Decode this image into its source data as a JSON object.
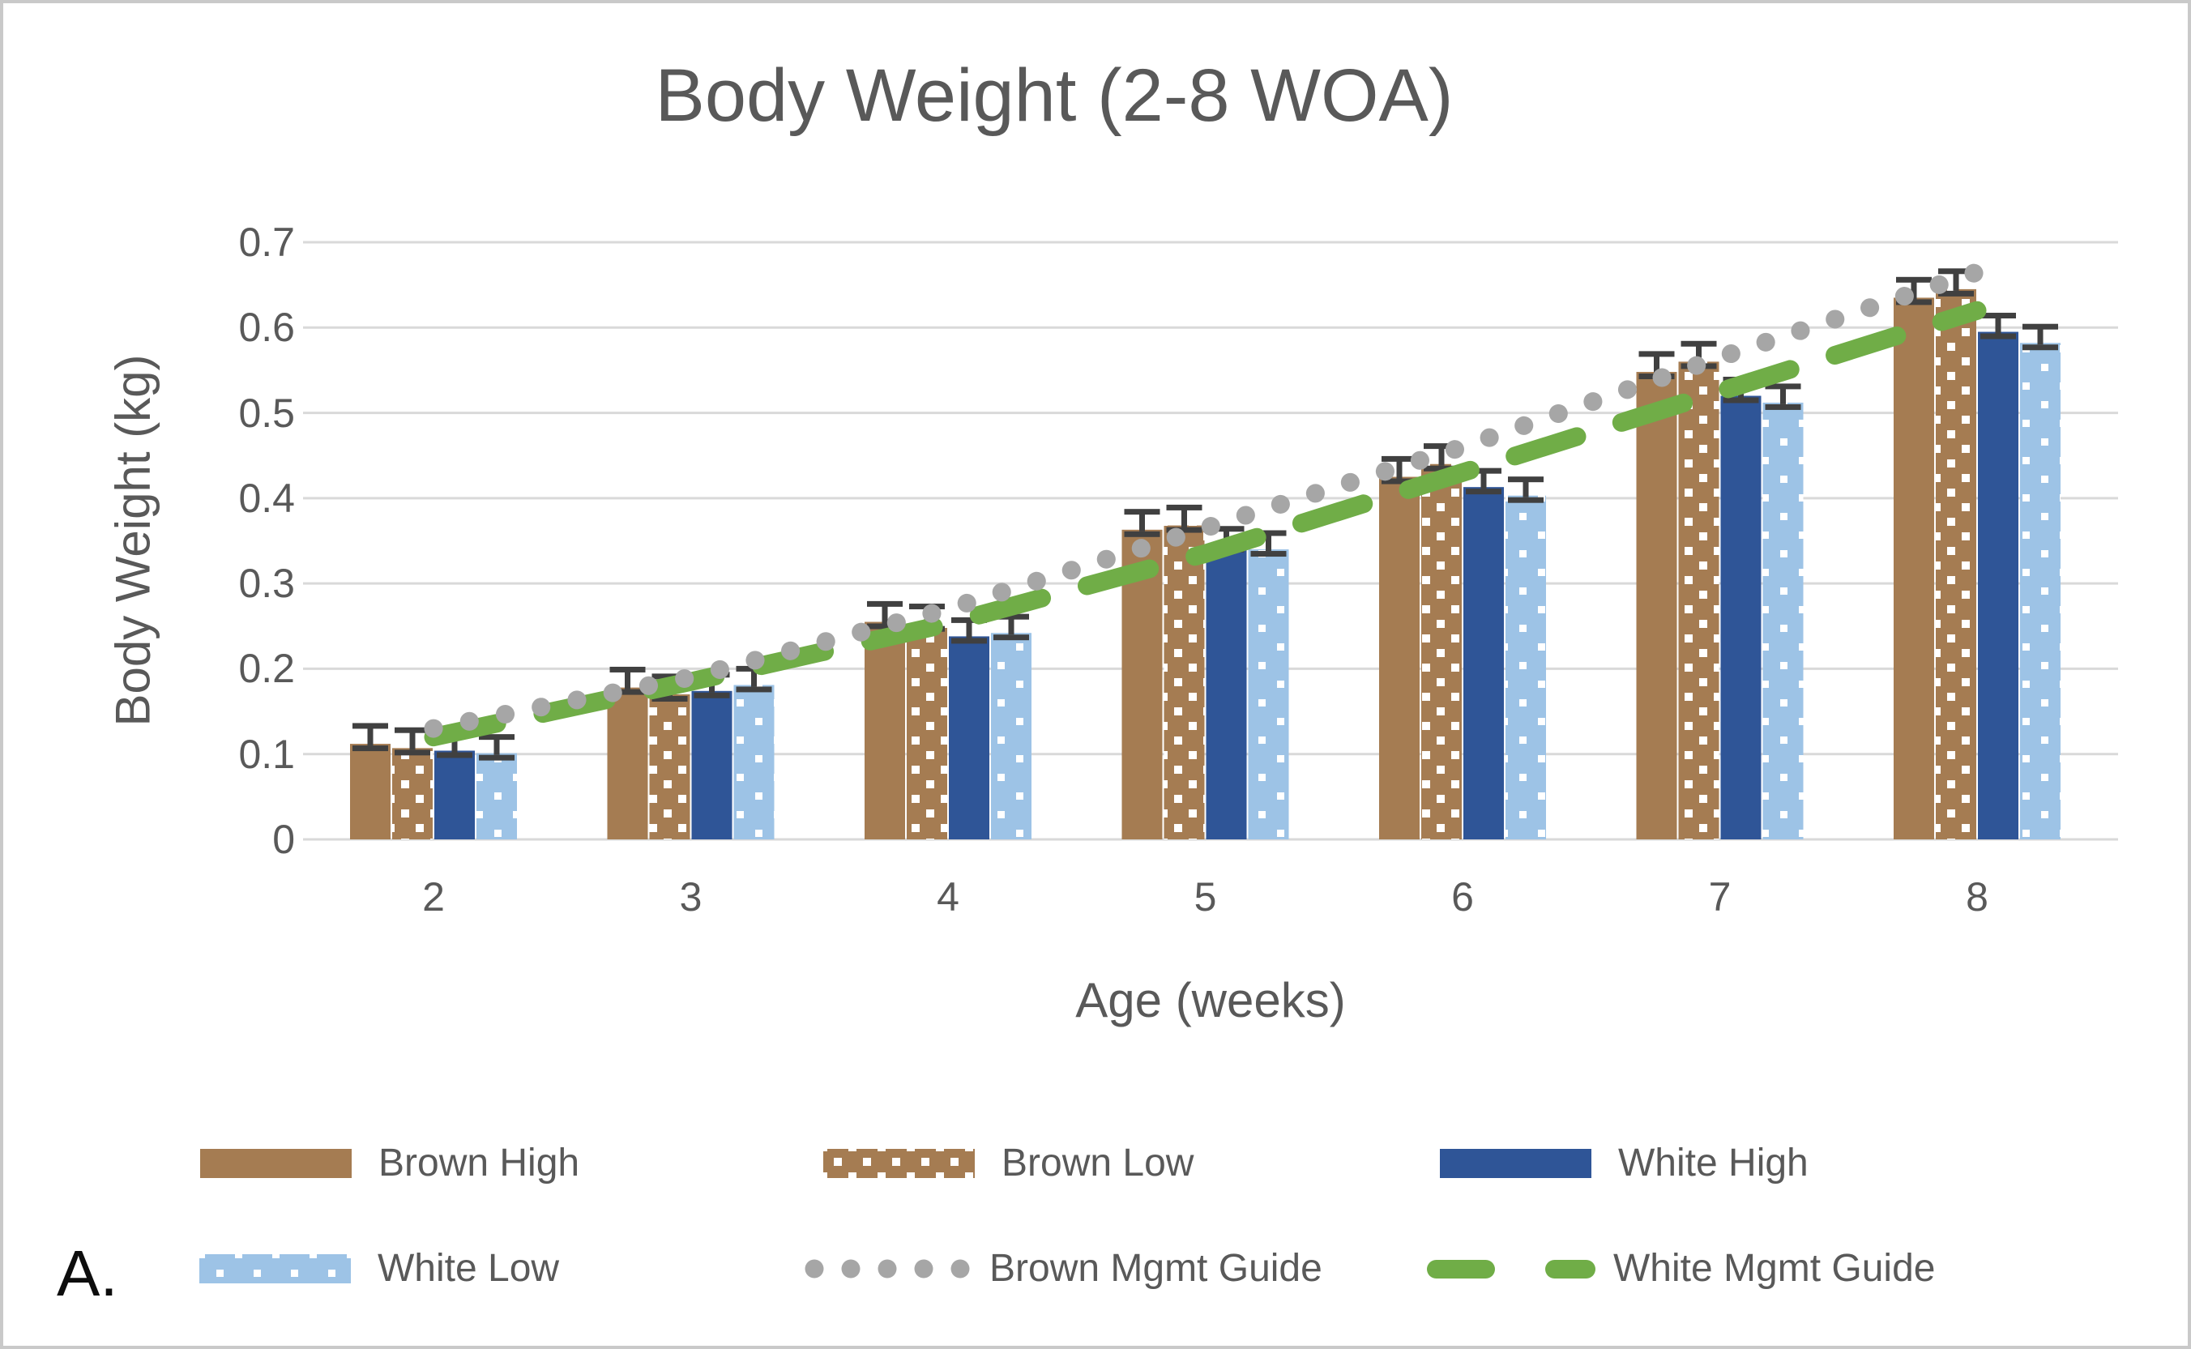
{
  "title": "Body Weight (2-8 WOA)",
  "figure_label": "A.",
  "axes": {
    "x_label": "Age (weeks)",
    "y_label": "Body Weight (kg)",
    "y_ticks": [
      "0",
      "0.1",
      "0.2",
      "0.3",
      "0.4",
      "0.5",
      "0.6",
      "0.7"
    ],
    "x_ticks": [
      "2",
      "3",
      "4",
      "5",
      "6",
      "7",
      "8"
    ]
  },
  "colors": {
    "brown": "#A57C52",
    "dark_blue": "#2F5597",
    "light_blue": "#9DC3E6",
    "green": "#70AD47",
    "gray_line": "#A6A6A6",
    "gridline": "#D9D9D9",
    "axis_text": "#595959",
    "error_bar": "#404040",
    "pattern_dot": "#FFFFFF"
  },
  "legend": {
    "rows": [
      [
        {
          "label": "Brown High",
          "style": "solid",
          "color": "#A57C52"
        },
        {
          "label": "Brown Low",
          "style": "pattern-brown",
          "color": "#A57C52"
        },
        {
          "label": "White High",
          "style": "solid",
          "color": "#2F5597"
        }
      ],
      [
        {
          "label": "White Low",
          "style": "pattern-blue",
          "color": "#9DC3E6"
        },
        {
          "label": "Brown Mgmt Guide",
          "style": "dots",
          "color": "#A6A6A6"
        },
        {
          "label": "White Mgmt Guide",
          "style": "dashes",
          "color": "#70AD47"
        }
      ]
    ]
  },
  "chart_data": {
    "type": "bar",
    "title": "Body Weight (2-8 WOA)",
    "xlabel": "Age (weeks)",
    "ylabel": "Body Weight (kg)",
    "categories": [
      2,
      3,
      4,
      5,
      6,
      7,
      8
    ],
    "ylim": [
      0,
      0.7
    ],
    "y_tick_step": 0.1,
    "grid": true,
    "legend_position": "bottom",
    "error_bars": "plus, value ~0.01 kg, read from caps",
    "series": [
      {
        "name": "Brown High",
        "kind": "bar",
        "style": "solid",
        "color": "#A57C52",
        "values": [
          0.112,
          0.178,
          0.255,
          0.363,
          0.425,
          0.548,
          0.635
        ],
        "error": 0.012
      },
      {
        "name": "Brown Low",
        "kind": "bar",
        "style": "white-dot-pattern",
        "color": "#A57C52",
        "values": [
          0.107,
          0.17,
          0.252,
          0.368,
          0.44,
          0.56,
          0.645
        ],
        "error": 0.012
      },
      {
        "name": "White High",
        "kind": "bar",
        "style": "solid",
        "color": "#2F5597",
        "values": [
          0.104,
          0.174,
          0.238,
          0.345,
          0.413,
          0.52,
          0.595
        ],
        "error": 0.01
      },
      {
        "name": "White Low",
        "kind": "bar",
        "style": "white-dot-pattern",
        "color": "#9DC3E6",
        "values": [
          0.101,
          0.181,
          0.242,
          0.34,
          0.403,
          0.512,
          0.582
        ],
        "error": 0.01
      },
      {
        "name": "Brown Mgmt Guide",
        "kind": "line",
        "style": "round-dotted",
        "color": "#A6A6A6",
        "values": [
          0.13,
          0.19,
          0.27,
          0.365,
          0.46,
          0.565,
          0.665
        ]
      },
      {
        "name": "White Mgmt Guide",
        "kind": "line",
        "style": "dashed",
        "color": "#70AD47",
        "values": [
          0.12,
          0.185,
          0.253,
          0.335,
          0.43,
          0.525,
          0.62
        ]
      }
    ]
  }
}
